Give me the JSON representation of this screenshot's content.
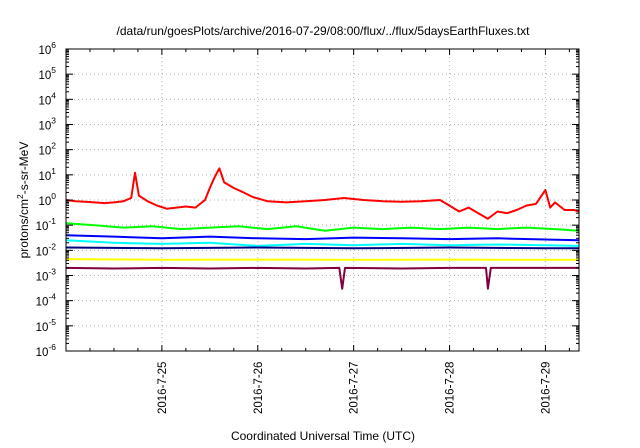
{
  "chart_data": {
    "type": "line",
    "title": "/data/run/goesPlots/archive/2016-07-29/08:00/flux/../flux/5daysEarthFluxes.txt",
    "xlabel": "Coordinated Universal Time (UTC)",
    "ylabel": "protons/cm2-s-sr-MeV",
    "ylabel_parts": {
      "pre": "protons/cm",
      "sup": "2",
      "post": "-s-sr-MeV"
    },
    "yscale": "log",
    "ylim": [
      1e-06,
      1000000.0
    ],
    "xlim": [
      0,
      5.35
    ],
    "x_ticks": [
      {
        "x": 1,
        "label": "2016-7-25"
      },
      {
        "x": 2,
        "label": "2016-7-26"
      },
      {
        "x": 3,
        "label": "2016-7-27"
      },
      {
        "x": 4,
        "label": "2016-7-28"
      },
      {
        "x": 5,
        "label": "2016-7-29"
      }
    ],
    "y_ticks": [
      {
        "exp": -6,
        "label_base": "10",
        "label_exp": "-6"
      },
      {
        "exp": -5,
        "label_base": "10",
        "label_exp": "-5"
      },
      {
        "exp": -4,
        "label_base": "10",
        "label_exp": "-4"
      },
      {
        "exp": -3,
        "label_base": "10",
        "label_exp": "-3"
      },
      {
        "exp": -2,
        "label_base": "10",
        "label_exp": "-2"
      },
      {
        "exp": -1,
        "label_base": "10",
        "label_exp": "-1"
      },
      {
        "exp": 0,
        "label_base": "10",
        "label_exp": "0"
      },
      {
        "exp": 1,
        "label_base": "10",
        "label_exp": "1"
      },
      {
        "exp": 2,
        "label_base": "10",
        "label_exp": "2"
      },
      {
        "exp": 3,
        "label_base": "10",
        "label_exp": "3"
      },
      {
        "exp": 4,
        "label_base": "10",
        "label_exp": "4"
      },
      {
        "exp": 5,
        "label_base": "10",
        "label_exp": "5"
      },
      {
        "exp": 6,
        "label_base": "10",
        "label_exp": "6"
      }
    ],
    "grid": true,
    "series": [
      {
        "color": "#ff0000",
        "points": [
          [
            0,
            1.0
          ],
          [
            0.1,
            0.9
          ],
          [
            0.2,
            0.85
          ],
          [
            0.3,
            0.8
          ],
          [
            0.4,
            0.75
          ],
          [
            0.5,
            0.8
          ],
          [
            0.6,
            0.9
          ],
          [
            0.68,
            1.2
          ],
          [
            0.72,
            12
          ],
          [
            0.76,
            1.5
          ],
          [
            0.85,
            0.9
          ],
          [
            0.95,
            0.6
          ],
          [
            1.05,
            0.45
          ],
          [
            1.15,
            0.5
          ],
          [
            1.25,
            0.55
          ],
          [
            1.35,
            0.5
          ],
          [
            1.45,
            1.0
          ],
          [
            1.5,
            3
          ],
          [
            1.55,
            8
          ],
          [
            1.6,
            18
          ],
          [
            1.65,
            5
          ],
          [
            1.75,
            3
          ],
          [
            1.85,
            2.0
          ],
          [
            1.95,
            1.3
          ],
          [
            2.1,
            0.9
          ],
          [
            2.3,
            0.8
          ],
          [
            2.5,
            0.9
          ],
          [
            2.7,
            1.0
          ],
          [
            2.9,
            1.2
          ],
          [
            3.1,
            1.0
          ],
          [
            3.3,
            0.9
          ],
          [
            3.5,
            0.85
          ],
          [
            3.7,
            0.9
          ],
          [
            3.9,
            1.0
          ],
          [
            4.0,
            0.6
          ],
          [
            4.1,
            0.35
          ],
          [
            4.2,
            0.5
          ],
          [
            4.3,
            0.3
          ],
          [
            4.4,
            0.18
          ],
          [
            4.5,
            0.35
          ],
          [
            4.6,
            0.3
          ],
          [
            4.7,
            0.4
          ],
          [
            4.8,
            0.6
          ],
          [
            4.9,
            0.7
          ],
          [
            5.0,
            2.5
          ],
          [
            5.05,
            0.5
          ],
          [
            5.1,
            0.8
          ],
          [
            5.2,
            0.4
          ],
          [
            5.3,
            0.4
          ],
          [
            5.35,
            0.35
          ]
        ]
      },
      {
        "color": "#00ff00",
        "points": [
          [
            0,
            0.12
          ],
          [
            0.3,
            0.1
          ],
          [
            0.6,
            0.08
          ],
          [
            0.9,
            0.09
          ],
          [
            1.2,
            0.07
          ],
          [
            1.5,
            0.08
          ],
          [
            1.8,
            0.09
          ],
          [
            2.1,
            0.07
          ],
          [
            2.4,
            0.09
          ],
          [
            2.7,
            0.06
          ],
          [
            3.0,
            0.08
          ],
          [
            3.3,
            0.07
          ],
          [
            3.6,
            0.08
          ],
          [
            3.9,
            0.07
          ],
          [
            4.2,
            0.08
          ],
          [
            4.5,
            0.07
          ],
          [
            4.8,
            0.08
          ],
          [
            5.1,
            0.07
          ],
          [
            5.35,
            0.06
          ]
        ]
      },
      {
        "color": "#00ffff",
        "points": [
          [
            0,
            0.025
          ],
          [
            0.5,
            0.02
          ],
          [
            1.0,
            0.018
          ],
          [
            1.5,
            0.02
          ],
          [
            2.0,
            0.015
          ],
          [
            2.5,
            0.018
          ],
          [
            3.0,
            0.016
          ],
          [
            3.5,
            0.018
          ],
          [
            4.0,
            0.016
          ],
          [
            4.5,
            0.017
          ],
          [
            5.0,
            0.016
          ],
          [
            5.35,
            0.015
          ]
        ]
      },
      {
        "color": "#0000ff",
        "points": [
          [
            0,
            0.04
          ],
          [
            0.5,
            0.035
          ],
          [
            1.0,
            0.03
          ],
          [
            1.5,
            0.035
          ],
          [
            2.0,
            0.03
          ],
          [
            2.5,
            0.028
          ],
          [
            3.0,
            0.032
          ],
          [
            3.5,
            0.03
          ],
          [
            4.0,
            0.028
          ],
          [
            4.5,
            0.03
          ],
          [
            5.0,
            0.027
          ],
          [
            5.35,
            0.025
          ]
        ]
      },
      {
        "color": "#000080",
        "points": [
          [
            0,
            0.013
          ],
          [
            1.0,
            0.012
          ],
          [
            2.0,
            0.013
          ],
          [
            3.0,
            0.012
          ],
          [
            4.0,
            0.013
          ],
          [
            5.0,
            0.012
          ],
          [
            5.35,
            0.012
          ]
        ]
      },
      {
        "color": "#ffff00",
        "points": [
          [
            0,
            0.0045
          ],
          [
            1.0,
            0.0042
          ],
          [
            2.0,
            0.0043
          ],
          [
            3.0,
            0.0042
          ],
          [
            4.0,
            0.0043
          ],
          [
            5.0,
            0.0042
          ],
          [
            5.35,
            0.0042
          ]
        ]
      },
      {
        "color": "#800040",
        "points": [
          [
            0,
            0.002
          ],
          [
            0.5,
            0.0019
          ],
          [
            1.0,
            0.002
          ],
          [
            1.5,
            0.0019
          ],
          [
            2.0,
            0.002
          ],
          [
            2.5,
            0.0019
          ],
          [
            2.85,
            0.002
          ],
          [
            2.88,
            0.0003
          ],
          [
            2.91,
            0.002
          ],
          [
            3.5,
            0.0019
          ],
          [
            4.0,
            0.002
          ],
          [
            4.38,
            0.002
          ],
          [
            4.4,
            0.0003
          ],
          [
            4.43,
            0.002
          ],
          [
            5.0,
            0.002
          ],
          [
            5.35,
            0.002
          ]
        ]
      }
    ]
  }
}
